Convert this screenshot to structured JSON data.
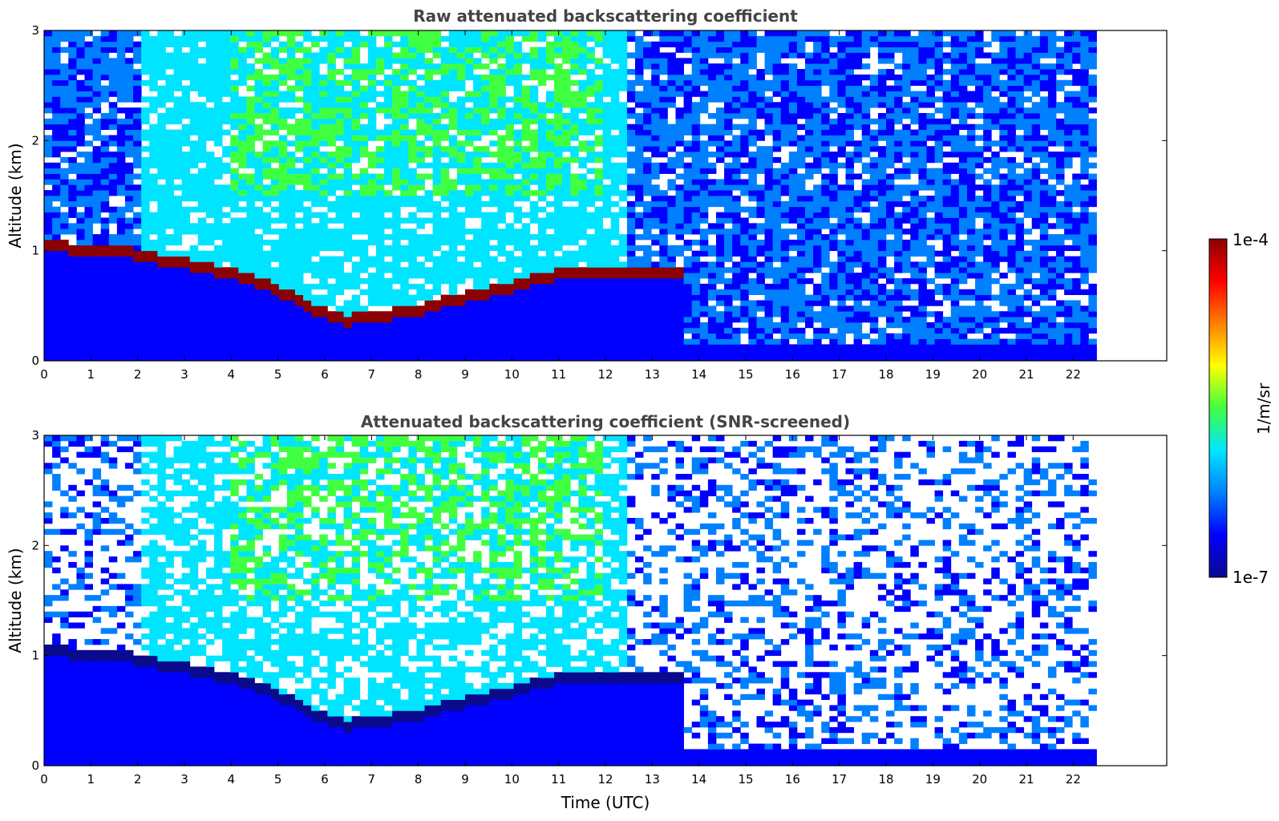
{
  "figure": {
    "xlabel": "Time (UTC)",
    "colorbar": {
      "label": "1/m/sr",
      "max_label": "1e-4",
      "min_label": "1e-7"
    },
    "colormap_stops": [
      "#0a0a8c",
      "#0000ff",
      "#0080ff",
      "#00e5ff",
      "#40ff40",
      "#ffff00",
      "#ff8000",
      "#ff0000",
      "#8b0000"
    ]
  },
  "chart_data": [
    {
      "type": "heatmap",
      "title": "Raw attenuated backscattering coefficient",
      "xlabel": "",
      "ylabel": "Altitude (km)",
      "xlim": [
        0,
        24
      ],
      "ylim": [
        0,
        3
      ],
      "xticks": [
        "0",
        "1",
        "2",
        "3",
        "4",
        "5",
        "6",
        "7",
        "8",
        "9",
        "10",
        "11",
        "12",
        "13",
        "14",
        "15",
        "16",
        "17",
        "18",
        "19",
        "20",
        "21",
        "22"
      ],
      "yticks": [
        "0",
        "1",
        "2",
        "3"
      ],
      "data_extent_x": [
        0,
        22.5
      ],
      "colorscale": {
        "min": "1e-7",
        "max": "1e-4",
        "unit": "1/m/sr",
        "scale": "log"
      },
      "layer_top_altitude_km": {
        "time": [
          0.3,
          0.5,
          1.0,
          1.5,
          2.0,
          3.0,
          4.0,
          5.0,
          5.5,
          6.0,
          6.5,
          7.0,
          8.0,
          9.0,
          10.0,
          11.0,
          12.0,
          12.5,
          13.0,
          13.5,
          15.8,
          16.0
        ],
        "altitude": [
          1.1,
          1.05,
          1.02,
          1.05,
          0.98,
          0.92,
          0.82,
          0.68,
          0.55,
          0.45,
          0.4,
          0.42,
          0.5,
          0.6,
          0.7,
          0.82,
          0.85,
          0.82,
          0.85,
          0.82,
          0.9,
          0.85
        ]
      }
    },
    {
      "type": "heatmap",
      "title": "Attenuated backscattering coefficient (SNR-screened)",
      "xlabel": "Time (UTC)",
      "ylabel": "Altitude (km)",
      "xlim": [
        0,
        24
      ],
      "ylim": [
        0,
        3
      ],
      "xticks": [
        "0",
        "1",
        "2",
        "3",
        "4",
        "5",
        "6",
        "7",
        "8",
        "9",
        "10",
        "11",
        "12",
        "13",
        "14",
        "15",
        "16",
        "17",
        "18",
        "19",
        "20",
        "21",
        "22"
      ],
      "yticks": [
        "0",
        "1",
        "2",
        "3"
      ],
      "data_extent_x": [
        0,
        22.5
      ],
      "colorscale": {
        "min": "1e-7",
        "max": "1e-4",
        "unit": "1/m/sr",
        "scale": "log"
      },
      "layer_top_altitude_km": {
        "time": [
          0.3,
          0.5,
          1.0,
          1.5,
          2.0,
          3.0,
          4.0,
          5.0,
          5.5,
          6.0,
          6.5,
          7.0,
          8.0,
          9.0,
          10.0,
          11.0,
          12.0,
          12.5,
          13.0,
          13.5,
          15.8,
          16.0
        ],
        "altitude": [
          1.1,
          1.05,
          1.02,
          1.05,
          0.98,
          0.92,
          0.82,
          0.68,
          0.55,
          0.45,
          0.4,
          0.42,
          0.5,
          0.6,
          0.7,
          0.82,
          0.85,
          0.82,
          0.85,
          0.82,
          0.9,
          0.85
        ]
      }
    }
  ]
}
